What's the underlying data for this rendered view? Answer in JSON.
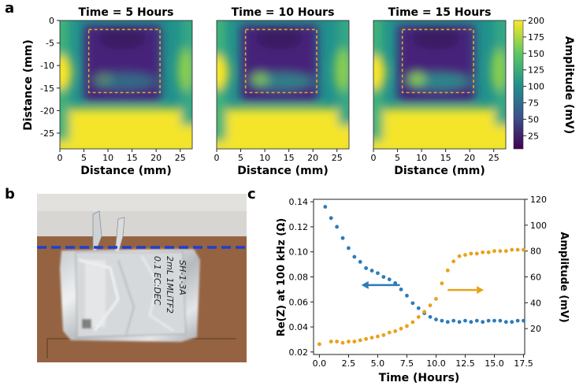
{
  "panel_labels": {
    "a": "a",
    "b": "b",
    "c": "c"
  },
  "heatmaps": {
    "panels": [
      {
        "title": "Time = 5 Hours"
      },
      {
        "title": "Time = 10 Hours"
      },
      {
        "title": "Time = 15 Hours"
      }
    ],
    "xlabel": "Distance (mm)",
    "ylabel": "Distance (mm)",
    "xticks": [
      "0",
      "5",
      "10",
      "15",
      "20",
      "25"
    ],
    "yticks": [
      "0",
      "-5",
      "-10",
      "-15",
      "-20",
      "-25"
    ],
    "colorbar": {
      "label": "Amplitude (mV)",
      "ticks": [
        "200",
        "175",
        "150",
        "125",
        "100",
        "75",
        "50",
        "25"
      ],
      "colormap": [
        "#440154",
        "#3b528b",
        "#21918c",
        "#5ec962",
        "#fde725"
      ]
    },
    "box_color": "#f0a030"
  },
  "photo": {
    "handwriting": [
      "SH-1-3A",
      "2mL 1MLiTF2",
      "0.1 EC:DEC"
    ],
    "line_color": "#1f3fd0"
  },
  "chart_data": {
    "type": "scatter",
    "xlabel": "Time (Hours)",
    "ylabel": "Re(Z) at 100 kHz (Ω)",
    "y2label": "Amplitude (mV)",
    "xlim": [
      -0.5,
      17.6
    ],
    "ylim": [
      0.018,
      0.142
    ],
    "y2lim": [
      0,
      120
    ],
    "xticks": [
      "0.0",
      "2.5",
      "5.0",
      "7.5",
      "10.0",
      "12.5",
      "15.0",
      "17.5"
    ],
    "yticks": [
      "0.02",
      "0.04",
      "0.06",
      "0.08",
      "0.10",
      "0.12",
      "0.14"
    ],
    "y2ticks": [
      "20",
      "40",
      "60",
      "80",
      "100",
      "120"
    ],
    "series": [
      {
        "axis": "left",
        "color": "#2b7bb9",
        "x": [
          0.5,
          1.0,
          1.5,
          2.0,
          2.5,
          3.0,
          3.5,
          4.0,
          4.5,
          5.0,
          5.5,
          6.0,
          6.5,
          7.0,
          7.5,
          8.0,
          8.5,
          9.0,
          9.5,
          10.0,
          10.5,
          11.0,
          11.5,
          12.0,
          12.5,
          13.0,
          13.5,
          14.0,
          14.5,
          15.0,
          15.5,
          16.0,
          16.5,
          17.0,
          17.5
        ],
        "values": [
          0.136,
          0.127,
          0.12,
          0.111,
          0.103,
          0.096,
          0.092,
          0.087,
          0.085,
          0.083,
          0.08,
          0.078,
          0.075,
          0.07,
          0.065,
          0.059,
          0.055,
          0.051,
          0.048,
          0.046,
          0.045,
          0.044,
          0.045,
          0.044,
          0.045,
          0.044,
          0.045,
          0.044,
          0.045,
          0.045,
          0.045,
          0.044,
          0.044,
          0.045,
          0.045
        ]
      },
      {
        "axis": "right",
        "color": "#e8a21a",
        "x": [
          0.0,
          1.0,
          1.5,
          2.0,
          2.5,
          3.0,
          3.5,
          4.0,
          4.5,
          5.0,
          5.5,
          6.0,
          6.5,
          7.0,
          7.5,
          8.0,
          8.5,
          9.0,
          9.5,
          10.0,
          10.5,
          11.0,
          11.5,
          12.0,
          12.5,
          13.0,
          13.5,
          14.0,
          14.5,
          15.0,
          15.5,
          16.0,
          16.5,
          17.0,
          17.5
        ],
        "values": [
          8,
          10,
          10,
          9,
          10,
          10,
          11,
          12,
          13,
          14,
          15,
          17,
          18,
          20,
          22,
          25,
          29,
          33,
          38,
          43,
          55,
          65,
          72,
          76,
          77,
          78,
          78,
          79,
          79,
          80,
          80,
          80,
          81,
          81,
          81
        ]
      }
    ],
    "arrows": [
      {
        "direction": "left",
        "color": "#2b7bb9"
      },
      {
        "direction": "right",
        "color": "#e8a21a"
      }
    ]
  }
}
